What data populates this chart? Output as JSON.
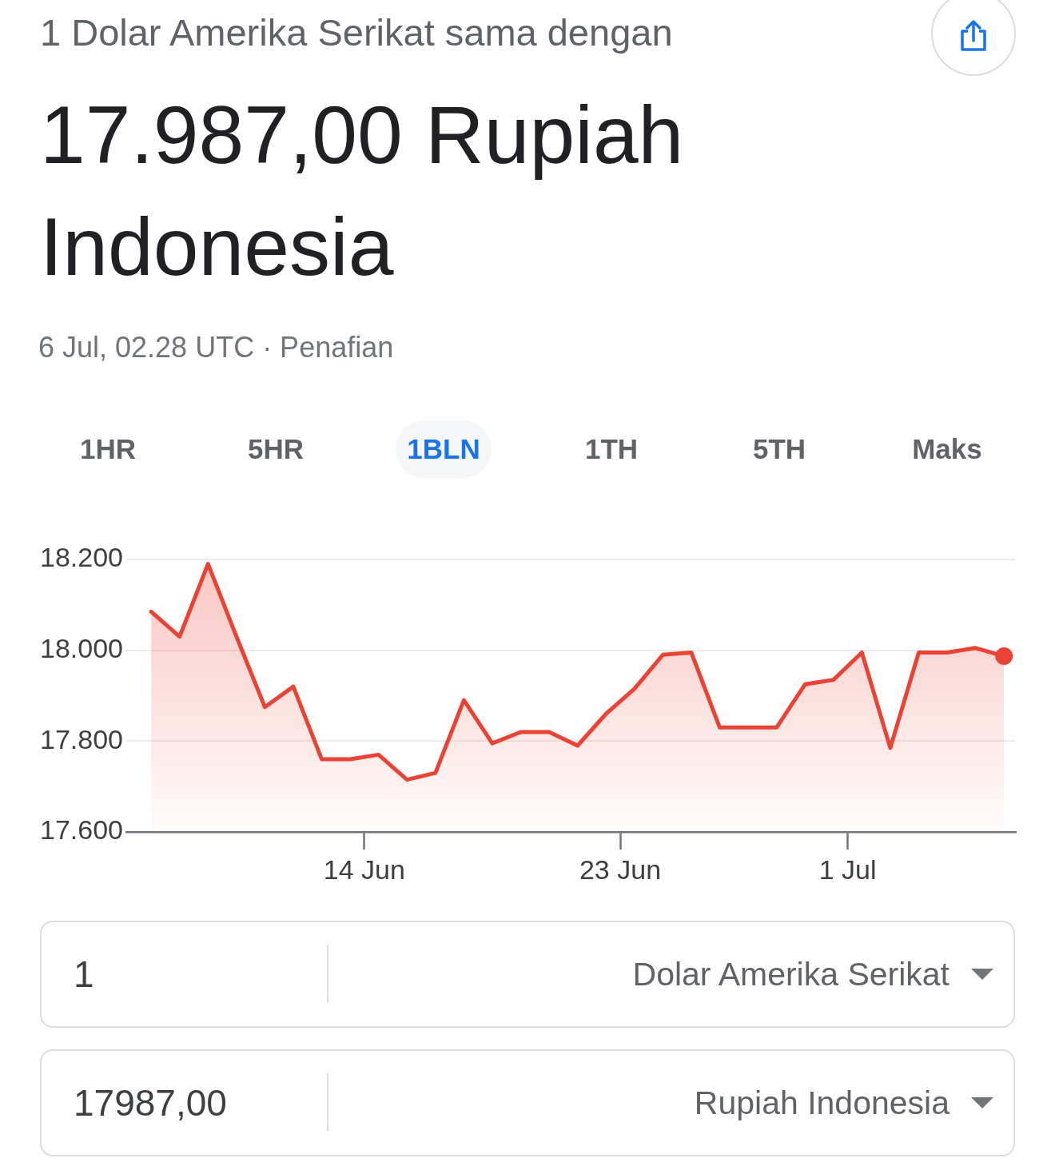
{
  "chart_data": {
    "type": "area",
    "subtitle": "1 Dolar Amerika Serikat sama dengan",
    "title": "17.987,00 Rupiah Indonesia",
    "annotations": [
      "6 Jul, 02.28 UTC · Penafian",
      "1HR",
      "5HR",
      "1BLN",
      "1TH",
      "5TH",
      "Maks",
      "1",
      "Dolar Amerika Serikat",
      "17987,00",
      "Rupiah Indonesia"
    ],
    "x": [
      "--06-06T12:00",
      "--06-07T12:00",
      "--06-08T12:00",
      "--06-09T12:00",
      "--06-10T12:00",
      "--06-11T12:00",
      "--06-12T12:00",
      "--06-13T12:00",
      "--06-14T12:00",
      "--06-15T12:00",
      "--06-16T12:00",
      "--06-17T12:00",
      "--06-18T12:00",
      "--06-19T12:00",
      "--06-20T12:00",
      "--06-21T12:00",
      "--06-22T12:00",
      "--06-23T12:00",
      "--06-24T12:00",
      "--06-25T12:00",
      "--06-26T12:00",
      "--06-27T12:00",
      "--06-28T12:00",
      "--06-29T12:00",
      "--06-30T12:00",
      "--07-01T12:00",
      "--07-02T12:00",
      "--07-03T12:00",
      "--07-04T12:00",
      "--07-05T12:00",
      "--07-06T12:00"
    ],
    "series": [
      {
        "color": "#ea4335",
        "marker": "none",
        "values": [
          18085,
          18030,
          18190,
          18030,
          17875,
          17920,
          17760,
          17760,
          17770,
          17715,
          17730,
          17890,
          17795,
          17820,
          17820,
          17790,
          17860,
          17915,
          17990,
          17995,
          17830,
          17830,
          17830,
          17925,
          17935,
          17995,
          17785,
          17995,
          17995,
          18005,
          17987
        ]
      },
      {
        "type": "scatter",
        "color": "#ea4335",
        "marker": "circle",
        "x": [
          "--07-06T12:00"
        ],
        "values": [
          17987
        ]
      }
    ],
    "xlim": [
      "--06-05T15:00",
      "--07-06T22:00"
    ],
    "xticks": [
      {
        "value": "--06-14",
        "label": "14 Jun"
      },
      {
        "value": "--06-23",
        "label": "23 Jun"
      },
      {
        "value": "--07-01",
        "label": "1 Jul"
      }
    ],
    "ylim": [
      17600,
      18200
    ],
    "yticks": [
      {
        "value": 17600,
        "label": "17.600"
      },
      {
        "value": 17800,
        "label": "17.800"
      },
      {
        "value": 18000,
        "label": "18.000"
      },
      {
        "value": 18200,
        "label": "18.200"
      }
    ],
    "grid": "y",
    "legend": false
  }
}
